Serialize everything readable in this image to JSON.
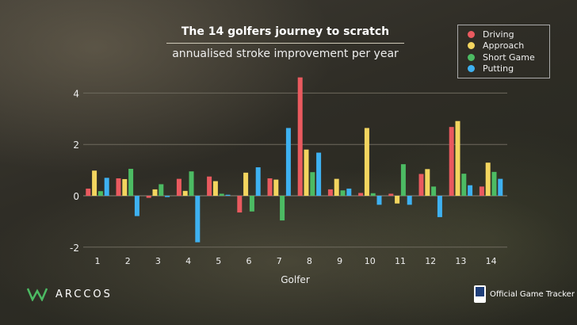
{
  "brand": {
    "logo_text": "ARCCOS",
    "tracker_text": "Official Game Tracker"
  },
  "chart_data": {
    "type": "bar",
    "title": "The 14 golfers journey to scratch",
    "subtitle": "annualised stroke improvement per year",
    "xlabel": "Golfer",
    "ylabel": "",
    "ylim": [
      -2.2,
      4.8
    ],
    "yticks": [
      -2,
      0,
      2,
      4
    ],
    "legend_position": "top-right",
    "grid": true,
    "categories": [
      "1",
      "2",
      "3",
      "4",
      "5",
      "6",
      "7",
      "8",
      "9",
      "10",
      "11",
      "12",
      "13",
      "14"
    ],
    "series": [
      {
        "name": "Driving",
        "color": "#ea5a5f",
        "values": [
          0.28,
          0.68,
          -0.08,
          0.66,
          0.75,
          -0.65,
          0.68,
          4.61,
          0.25,
          0.11,
          0.08,
          0.85,
          2.68,
          0.36
        ]
      },
      {
        "name": "Approach",
        "color": "#f3d55f",
        "values": [
          0.98,
          0.65,
          0.25,
          0.19,
          0.57,
          0.9,
          0.63,
          1.8,
          0.66,
          2.64,
          -0.3,
          1.04,
          2.91,
          1.29
        ]
      },
      {
        "name": "Short Game",
        "color": "#4cbb63",
        "values": [
          0.18,
          1.05,
          0.45,
          0.95,
          0.08,
          -0.61,
          -0.96,
          0.92,
          0.21,
          0.1,
          1.23,
          0.36,
          0.86,
          0.93
        ]
      },
      {
        "name": "Putting",
        "color": "#3eb1f1",
        "values": [
          0.7,
          -0.79,
          -0.05,
          -1.81,
          0.04,
          1.11,
          2.64,
          1.68,
          0.28,
          -0.35,
          -0.35,
          -0.83,
          0.41,
          0.66
        ]
      }
    ]
  }
}
